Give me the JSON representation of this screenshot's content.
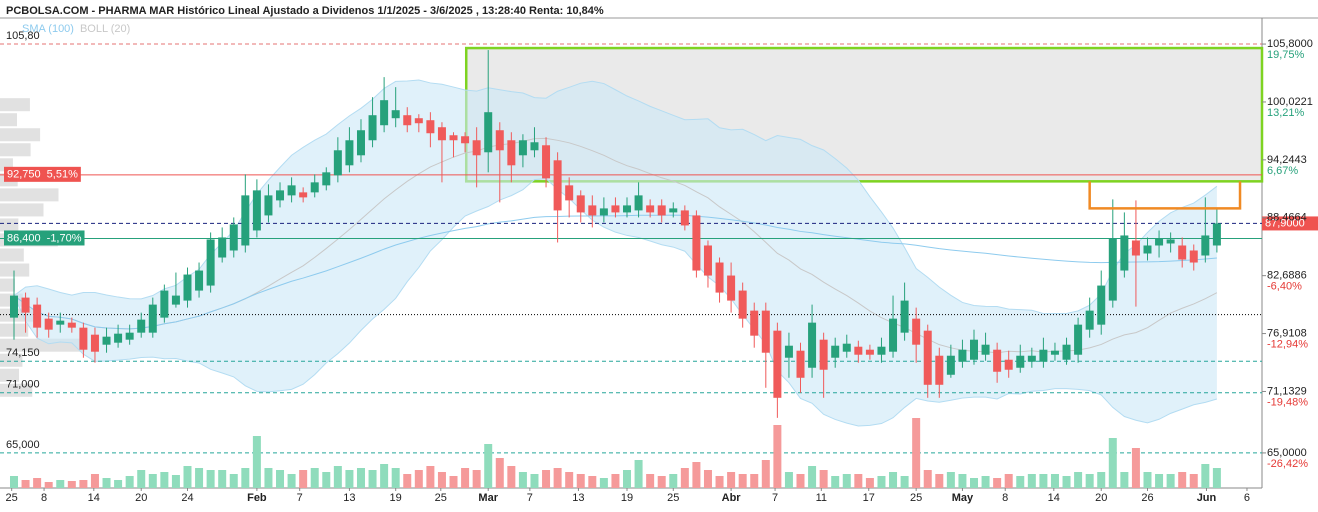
{
  "chart_data": {
    "type": "candlestick",
    "title": "PCBOLSA.COM - PHARMA MAR Histórico Lineal Ajustado a Dividenos 1/1/2025 - 3/6/2025 , 13:28:40 Renta: 10,84%",
    "legend": [
      {
        "name": "SMA (100)",
        "color": "#8ecbee"
      },
      {
        "name": "BOLL (20)",
        "color": "#c8c8c8"
      }
    ],
    "sma_period": 100,
    "boll_period": 20,
    "boll_k": 2,
    "profile_bin": 1.5,
    "up_color": "#26a17b",
    "down_color": "#f05a5a",
    "up_volume_color": "#8fdcbc",
    "down_volume_color": "#f59a9a",
    "open": [
      78.5,
      80.5,
      79.8,
      78.4,
      77.8,
      78,
      77.5,
      76.8,
      75.8,
      76,
      76.3,
      77,
      77,
      78.5,
      79.8,
      80.2,
      81.2,
      81.7,
      84.5,
      85.2,
      85.7,
      87.2,
      88.7,
      90.2,
      90.7,
      91,
      91,
      91.7,
      92.7,
      93.7,
      94.7,
      96.2,
      97.7,
      98.4,
      98.7,
      98.4,
      98.2,
      97.5,
      96.7,
      96.6,
      96.2,
      95,
      97.2,
      96.2,
      94.7,
      95.2,
      95.7,
      94.2,
      91.7,
      90.7,
      89.7,
      88.7,
      89.7,
      89,
      89.2,
      89.7,
      89.7,
      89,
      89.2,
      88.7,
      85.7,
      84,
      82.7,
      81.2,
      79.2,
      79.2,
      77.2,
      74.5,
      75.2,
      73.5,
      76.3,
      74.5,
      75.1,
      75.6,
      75.3,
      74.8,
      75.1,
      77,
      78.4,
      77.2,
      74.7,
      72.8,
      74.1,
      74.3,
      74.8,
      75.3,
      74.3,
      73.5,
      74.1,
      74.1,
      74.8,
      74.3,
      74.8,
      77.3,
      77.8,
      80.2,
      83.2,
      86.2,
      84.9,
      85.7,
      85.9,
      85.7,
      85.2,
      84.7,
      85.7
    ],
    "high": [
      83.2,
      81,
      80.5,
      79,
      79,
      78.5,
      78,
      77.5,
      77.5,
      77.8,
      77.8,
      79,
      80.5,
      81.8,
      83,
      83.5,
      84,
      87,
      87.5,
      88.5,
      92.8,
      92.3,
      91.8,
      92,
      92.5,
      91.5,
      92.8,
      93.5,
      96.5,
      97.5,
      98.3,
      100.5,
      102.5,
      101.5,
      99.5,
      98.8,
      99,
      98,
      97,
      97,
      97.5,
      105.2,
      98,
      97,
      96.8,
      97.5,
      96.5,
      95,
      92.5,
      91.2,
      90.7,
      90.5,
      90.5,
      90.5,
      92,
      90.3,
      90.3,
      90,
      89.7,
      89.2,
      86.2,
      84.5,
      84,
      82,
      80,
      80,
      78,
      77,
      76,
      79.8,
      77,
      76.5,
      76.8,
      76.2,
      75.8,
      76.5,
      80.7,
      82,
      79.5,
      77.8,
      75.5,
      75.8,
      76.3,
      77.3,
      77,
      76,
      75.2,
      75.8,
      75.5,
      76.5,
      76,
      76.5,
      78.5,
      80.5,
      83.2,
      90.3,
      89,
      90.2,
      86.5,
      87.2,
      87,
      86.5,
      85.8,
      90.5,
      89.3
    ],
    "low": [
      76.3,
      77,
      76.5,
      76.5,
      77,
      77,
      74.5,
      74,
      75,
      75.5,
      75.8,
      76.5,
      76.5,
      78,
      79.5,
      79.5,
      80.5,
      81,
      84,
      84.5,
      85,
      86.5,
      88,
      89.5,
      90,
      90,
      90.5,
      91.2,
      92,
      93,
      94,
      95.5,
      97,
      97.5,
      97,
      97,
      95.5,
      92,
      94.5,
      95,
      91.5,
      93,
      90,
      92,
      93.5,
      94.5,
      91.5,
      86,
      88.5,
      88,
      87.5,
      88,
      88.5,
      88.5,
      88.5,
      88.5,
      88,
      88.5,
      87.2,
      82.5,
      81.5,
      80,
      79,
      77.5,
      75.5,
      71.5,
      68.5,
      72.5,
      71,
      72.5,
      70.5,
      73.5,
      74.5,
      74,
      74.3,
      74,
      74.5,
      76.2,
      74,
      70.5,
      70.5,
      72.5,
      73.5,
      73.8,
      74.2,
      72,
      72.5,
      73,
      73.5,
      73.5,
      74.2,
      73.8,
      74,
      76.5,
      76.8,
      79.5,
      82.5,
      79.6,
      84.2,
      84.5,
      85,
      83.5,
      83.2,
      84,
      85
    ],
    "close": [
      80.7,
      79,
      77.5,
      77.3,
      78.2,
      77.5,
      75.3,
      75.1,
      76.6,
      76.9,
      77,
      78.3,
      79.8,
      81.2,
      80.7,
      82.8,
      83.2,
      86.3,
      86.5,
      87.8,
      90.7,
      91.2,
      90.7,
      91.2,
      91.7,
      90.5,
      92,
      93,
      95.2,
      96.2,
      97.2,
      98.7,
      100.2,
      99.2,
      97.7,
      97.9,
      96.9,
      96.2,
      96.2,
      95.9,
      94.7,
      99,
      95.2,
      93.7,
      96.2,
      96,
      92.4,
      89.2,
      90.2,
      89,
      88.7,
      89.4,
      89,
      89.7,
      90.7,
      89,
      88.7,
      89.4,
      87.7,
      83.2,
      82.7,
      81,
      80.2,
      78.4,
      76.7,
      75,
      70.5,
      75.7,
      72.5,
      78,
      73.3,
      75.7,
      75.9,
      74.8,
      74.8,
      75.6,
      78.4,
      80.2,
      75.8,
      71.8,
      71.8,
      74.7,
      75.3,
      76.3,
      75.8,
      73.1,
      73.3,
      74.7,
      74.7,
      75.3,
      75.2,
      75.8,
      77.8,
      79.2,
      81.7,
      86.4,
      86.7,
      84.7,
      85.7,
      86.4,
      86.3,
      84.3,
      84,
      86.7,
      87.9
    ],
    "volume": [
      12,
      8,
      10,
      6,
      8,
      7,
      8,
      14,
      10,
      8,
      12,
      18,
      14,
      16,
      13,
      22,
      20,
      18,
      18,
      14,
      20,
      52,
      20,
      18,
      14,
      18,
      20,
      16,
      22,
      18,
      20,
      18,
      24,
      20,
      14,
      18,
      22,
      16,
      12,
      20,
      18,
      44,
      30,
      22,
      16,
      14,
      18,
      20,
      16,
      14,
      12,
      10,
      14,
      18,
      28,
      14,
      12,
      14,
      20,
      26,
      18,
      12,
      16,
      14,
      14,
      28,
      63,
      16,
      14,
      22,
      18,
      12,
      14,
      14,
      10,
      12,
      16,
      12,
      70,
      18,
      14,
      16,
      14,
      10,
      12,
      10,
      14,
      12,
      14,
      14,
      14,
      12,
      16,
      14,
      16,
      50,
      16,
      40,
      16,
      14,
      14,
      16,
      14,
      24,
      20
    ],
    "xlim": [
      -1.21,
      107.9
    ],
    "xticks": [
      {
        "value": -0.2,
        "label": "25"
      },
      {
        "value": 2.6,
        "label": "8"
      },
      {
        "value": 6.9,
        "label": "14"
      },
      {
        "value": 11.0,
        "label": "20"
      },
      {
        "value": 15.0,
        "label": "24"
      },
      {
        "value": 21.0,
        "label": "Feb"
      },
      {
        "value": 24.7,
        "label": "7"
      },
      {
        "value": 29.0,
        "label": "13"
      },
      {
        "value": 33.0,
        "label": "19"
      },
      {
        "value": 36.9,
        "label": "25"
      },
      {
        "value": 41.0,
        "label": "Mar"
      },
      {
        "value": 44.6,
        "label": "7"
      },
      {
        "value": 48.8,
        "label": "13"
      },
      {
        "value": 53.0,
        "label": "19"
      },
      {
        "value": 57.0,
        "label": "25"
      },
      {
        "value": 62.0,
        "label": "Abr"
      },
      {
        "value": 65.8,
        "label": "7"
      },
      {
        "value": 69.8,
        "label": "11"
      },
      {
        "value": 73.9,
        "label": "17"
      },
      {
        "value": 78.0,
        "label": "25"
      },
      {
        "value": 82.0,
        "label": "May"
      },
      {
        "value": 85.7,
        "label": "8"
      },
      {
        "value": 89.9,
        "label": "14"
      },
      {
        "value": 94.0,
        "label": "20"
      },
      {
        "value": 98.0,
        "label": "26"
      },
      {
        "value": 103.1,
        "label": "Jun"
      },
      {
        "value": 106.6,
        "label": "6"
      }
    ],
    "ylim": [
      61.5,
      108.4
    ],
    "yticks": [
      {
        "value": 105.8,
        "label": "105,8000"
      },
      {
        "value": 100.0221,
        "label": "100,0221"
      },
      {
        "value": 94.2443,
        "label": "94,2443"
      },
      {
        "value": 88.4664,
        "label": "88,4664"
      },
      {
        "value": 82.6886,
        "label": "82,6886"
      },
      {
        "value": 76.9108,
        "label": "76,9108"
      },
      {
        "value": 71.1329,
        "label": "71,1329"
      },
      {
        "value": 65.0,
        "label": "65,0000"
      }
    ],
    "pct_ticks": [
      {
        "value": 19.75,
        "label": "19,75%"
      },
      {
        "value": 13.21,
        "label": "13,21%"
      },
      {
        "value": 6.67,
        "label": "6,67%"
      },
      null,
      {
        "value": -6.4,
        "label": "-6,40%"
      },
      {
        "value": -12.94,
        "label": "-12,94%"
      },
      {
        "value": -19.48,
        "label": "-19,48%"
      },
      {
        "value": -26.42,
        "label": "-26,42%"
      }
    ],
    "levels": [
      {
        "value": 105.8,
        "label": "105,80",
        "side": "left",
        "style": "dashed",
        "color": "#e57373"
      },
      {
        "value": 92.75,
        "label": "92,750",
        "pct": 5.51,
        "pct_label": "5,51%",
        "side": "left",
        "style": "solid",
        "color": "#ef5350",
        "box": true
      },
      {
        "value": 87.9,
        "label": "87,9000",
        "side": "right",
        "style": "dashed",
        "color": "#1a237e",
        "box": true,
        "box_color": "#ef5350"
      },
      {
        "value": 86.4,
        "label": "86,400",
        "pct": -1.7,
        "pct_label": "-1,70%",
        "side": "left",
        "style": "solid",
        "color": "#26a17b",
        "box": true
      },
      {
        "value": 78.8,
        "side": "left",
        "style": "dotted",
        "color": "#000000"
      },
      {
        "value": 74.15,
        "label": "74,150",
        "side": "left",
        "style": "dashed",
        "color": "#26a69a"
      },
      {
        "value": 71.0,
        "label": "71,000",
        "side": "left",
        "style": "dashed",
        "color": "#26a69a"
      },
      {
        "value": 65.0,
        "label": "65,000",
        "side": "left",
        "style": "dashed",
        "color": "#26a69a"
      }
    ],
    "zones": [
      {
        "x": [
          39.1,
          107.9
        ],
        "y": [
          92.1,
          105.4
        ],
        "color": "#7ed321",
        "fill": "#e6e6e6",
        "shape": "box"
      },
      {
        "x": [
          93.0,
          106.0
        ],
        "y": [
          89.4,
          92.1
        ],
        "color": "#f08a24",
        "shape": "bracket"
      }
    ]
  }
}
